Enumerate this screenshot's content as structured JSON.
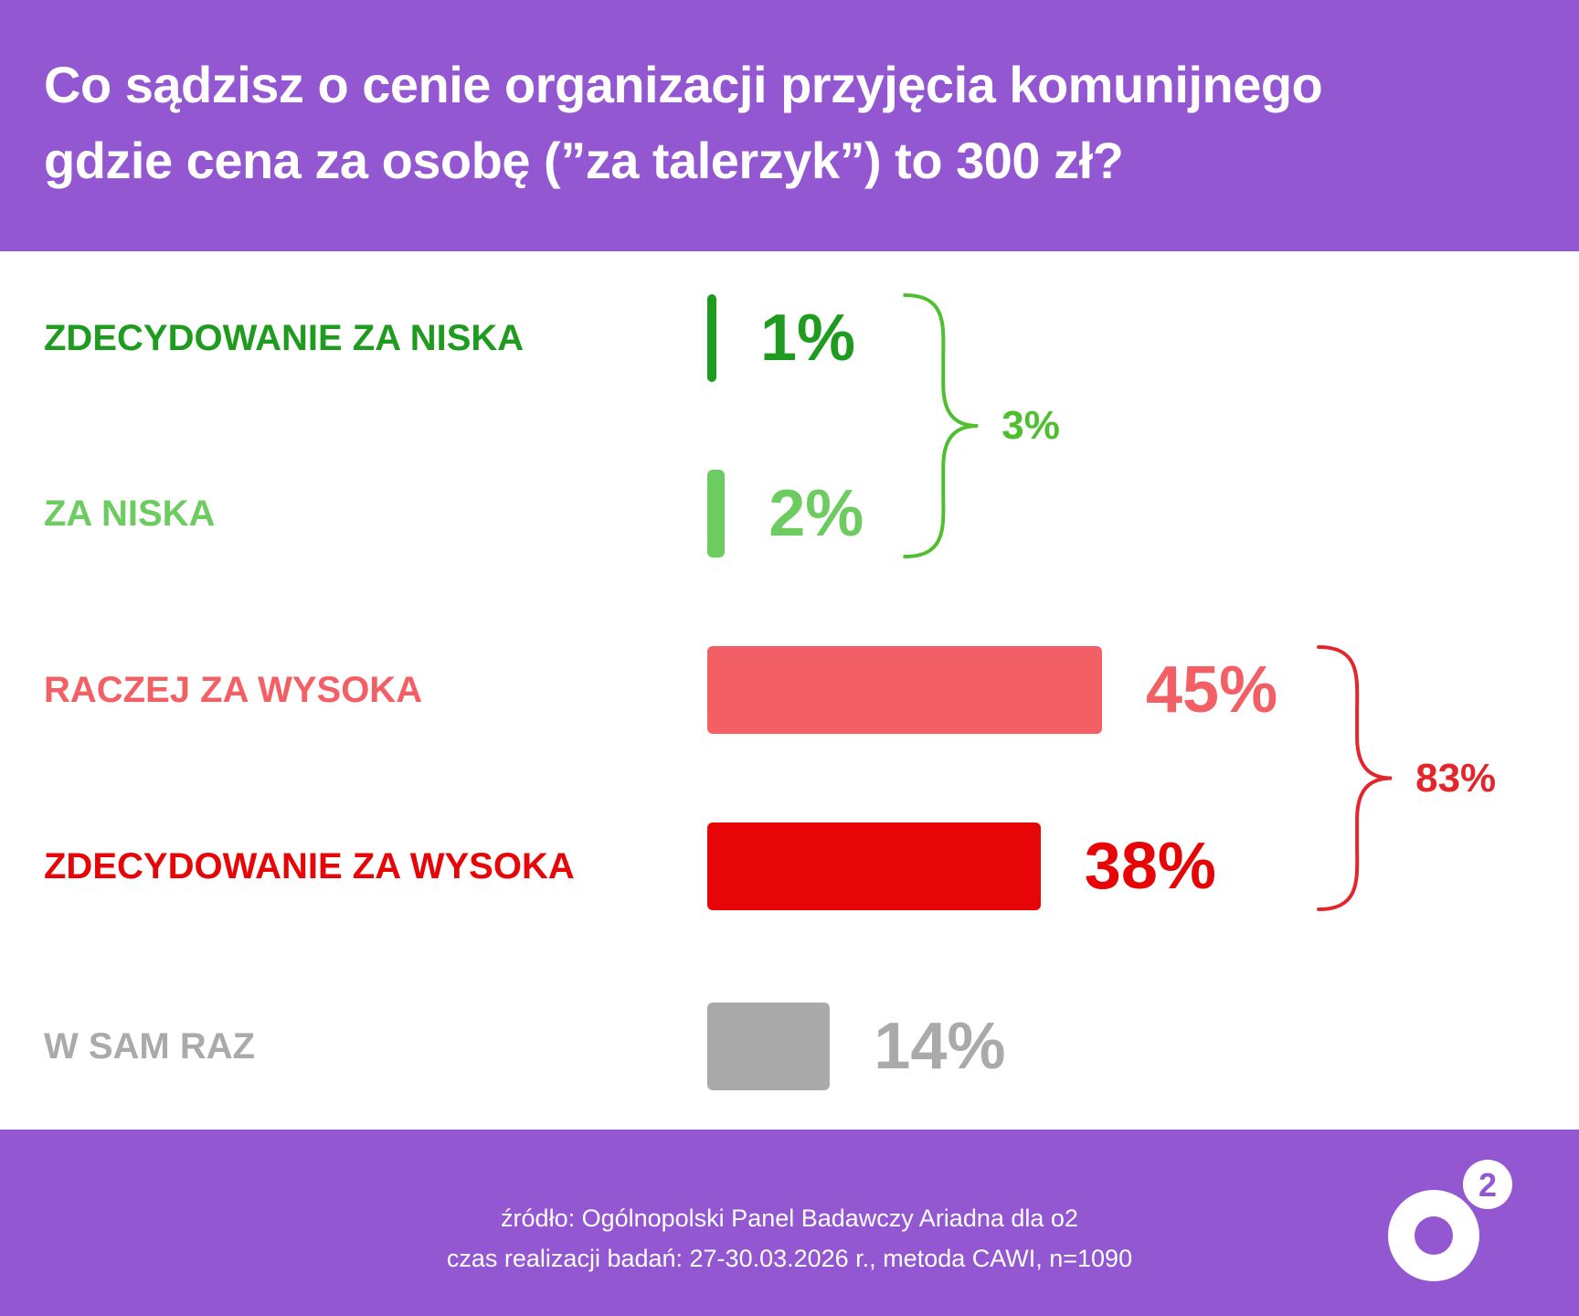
{
  "header": {
    "title_lines": [
      "Co sądzisz o cenie organizacji przyjęcia komunijnego",
      "gdzie cena za osobę (”za talerzyk”) to 300 zł?"
    ]
  },
  "chart_data": {
    "type": "bar",
    "orientation": "horizontal",
    "title": "Co sądzisz o cenie organizacji przyjęcia komunijnego gdzie cena za osobę (”za talerzyk”) to 300 zł?",
    "unit": "%",
    "categories": [
      "ZDECYDOWANIE ZA NISKA",
      "ZA NISKA",
      "RACZEJ ZA WYSOKA",
      "ZDECYDOWANIE ZA WYSOKA",
      "W SAM RAZ"
    ],
    "values": [
      1,
      2,
      45,
      38,
      14
    ],
    "value_labels": [
      "1%",
      "2%",
      "45%",
      "38%",
      "14%"
    ],
    "colors": [
      "#1f9c1f",
      "#6dcc5f",
      "#f26065",
      "#e60507",
      "#aaaaaa"
    ],
    "xlim": [
      0,
      45
    ],
    "groups": [
      {
        "label": "3%",
        "value": 3,
        "members": [
          0,
          1
        ],
        "color": "#4fbf30"
      },
      {
        "label": "83%",
        "value": 83,
        "members": [
          2,
          3
        ],
        "color": "#e3262c"
      }
    ]
  },
  "footer": {
    "source": "źródło: Ogólnopolski Panel Badawczy Ariadna dla o2",
    "method": "czas realizacji badań: 27-30.03.2026 r., metoda CAWI, n=1090"
  },
  "logo": {
    "text": "o2",
    "superscript": "2"
  }
}
